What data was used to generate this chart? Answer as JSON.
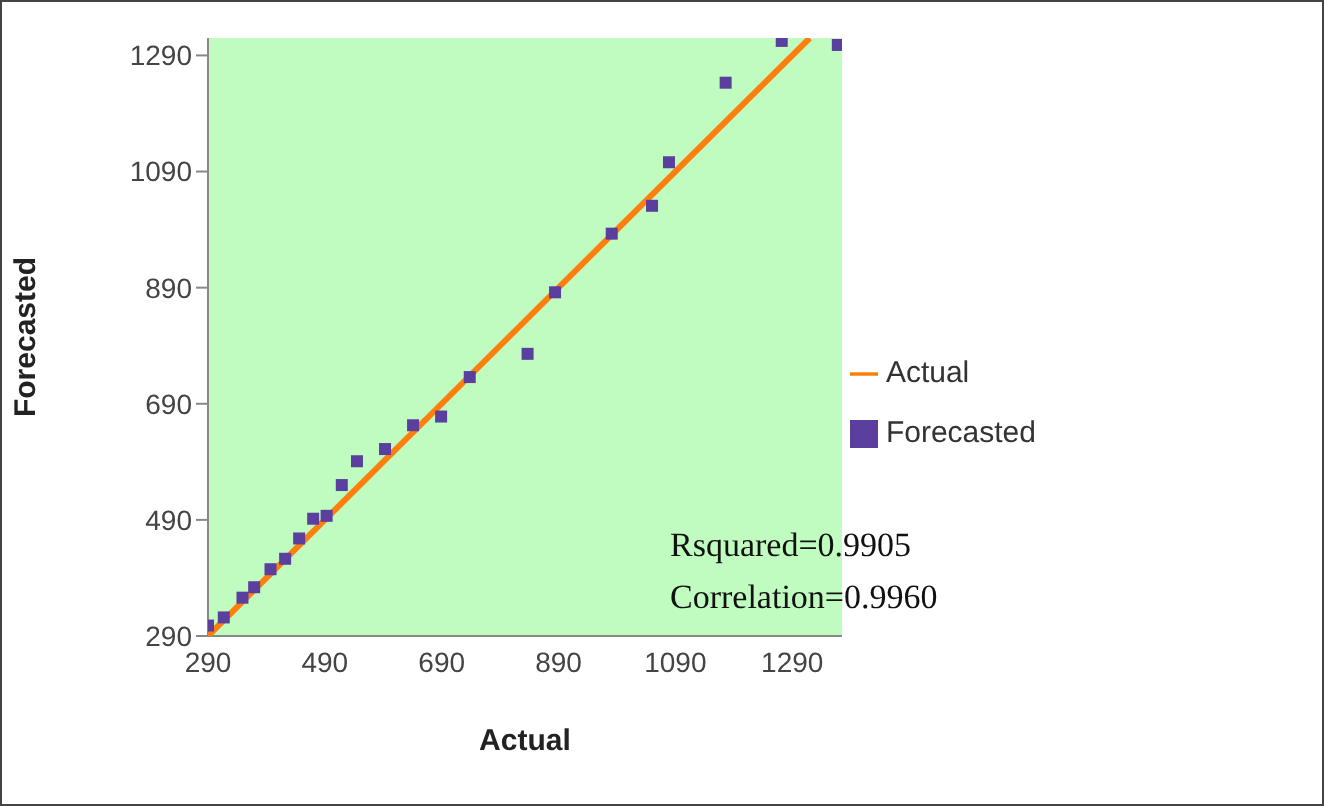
{
  "chart_data": {
    "type": "scatter",
    "xlabel": "Actual",
    "ylabel": "Forecasted",
    "xlim": [
      290,
      1375
    ],
    "ylim": [
      290,
      1320
    ],
    "xticks": [
      290,
      490,
      690,
      890,
      1090,
      1290
    ],
    "yticks": [
      290,
      490,
      690,
      890,
      1090,
      1290
    ],
    "legend": "right",
    "annotations": [
      "Rsquared=0.9905",
      "Correlation=0.9960"
    ],
    "series": [
      {
        "name": "Actual",
        "type": "line",
        "color": "#ff7f0e",
        "x": [
          290,
          1320
        ],
        "values": [
          290,
          1320
        ]
      },
      {
        "name": "Forecasted",
        "marker": "square",
        "color": "#5b3f9e",
        "x": [
          290,
          317,
          349,
          369,
          397,
          422,
          446,
          470,
          493,
          519,
          545,
          593,
          641,
          689,
          738,
          837,
          884,
          981,
          1050,
          1079,
          1176,
          1272,
          1368
        ],
        "values": [
          308,
          322,
          356,
          374,
          405,
          423,
          458,
          492,
          497,
          550,
          591,
          612,
          653,
          668,
          736,
          776,
          882,
          983,
          1031,
          1106,
          1243,
          1315,
          1308
        ]
      }
    ]
  }
}
